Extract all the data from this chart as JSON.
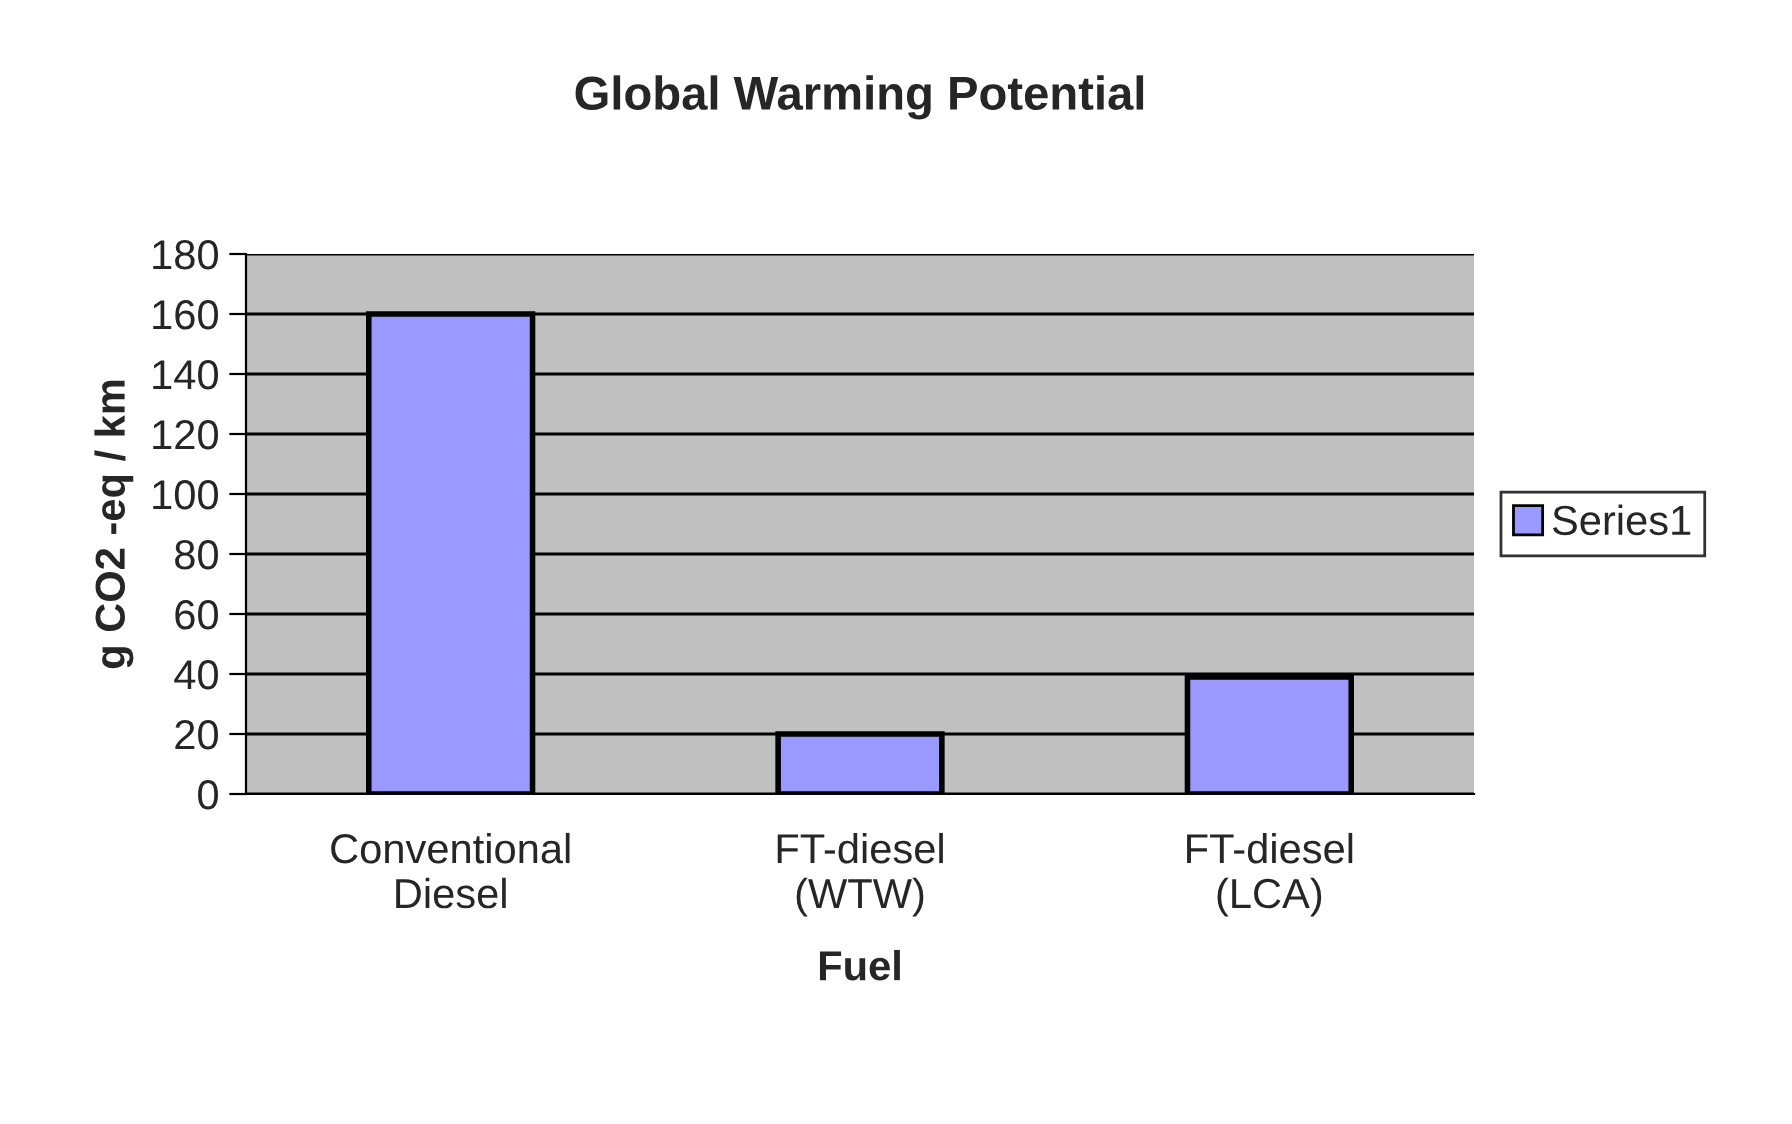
{
  "chart_data": {
    "type": "bar",
    "title": "Global Warming Potential",
    "xlabel": "Fuel",
    "ylabel": "g CO2 -eq / km",
    "categories": [
      "Conventional\nDiesel",
      "FT-diesel\n(WTW)",
      "FT-diesel\n(LCA)"
    ],
    "series": [
      {
        "name": "Series1",
        "color": "#9999ff",
        "values": [
          160,
          20,
          39
        ]
      }
    ],
    "ylim": [
      0,
      180
    ],
    "yticks": [
      0,
      20,
      40,
      60,
      80,
      100,
      120,
      140,
      160,
      180
    ],
    "grid": "y",
    "legend": "right"
  }
}
